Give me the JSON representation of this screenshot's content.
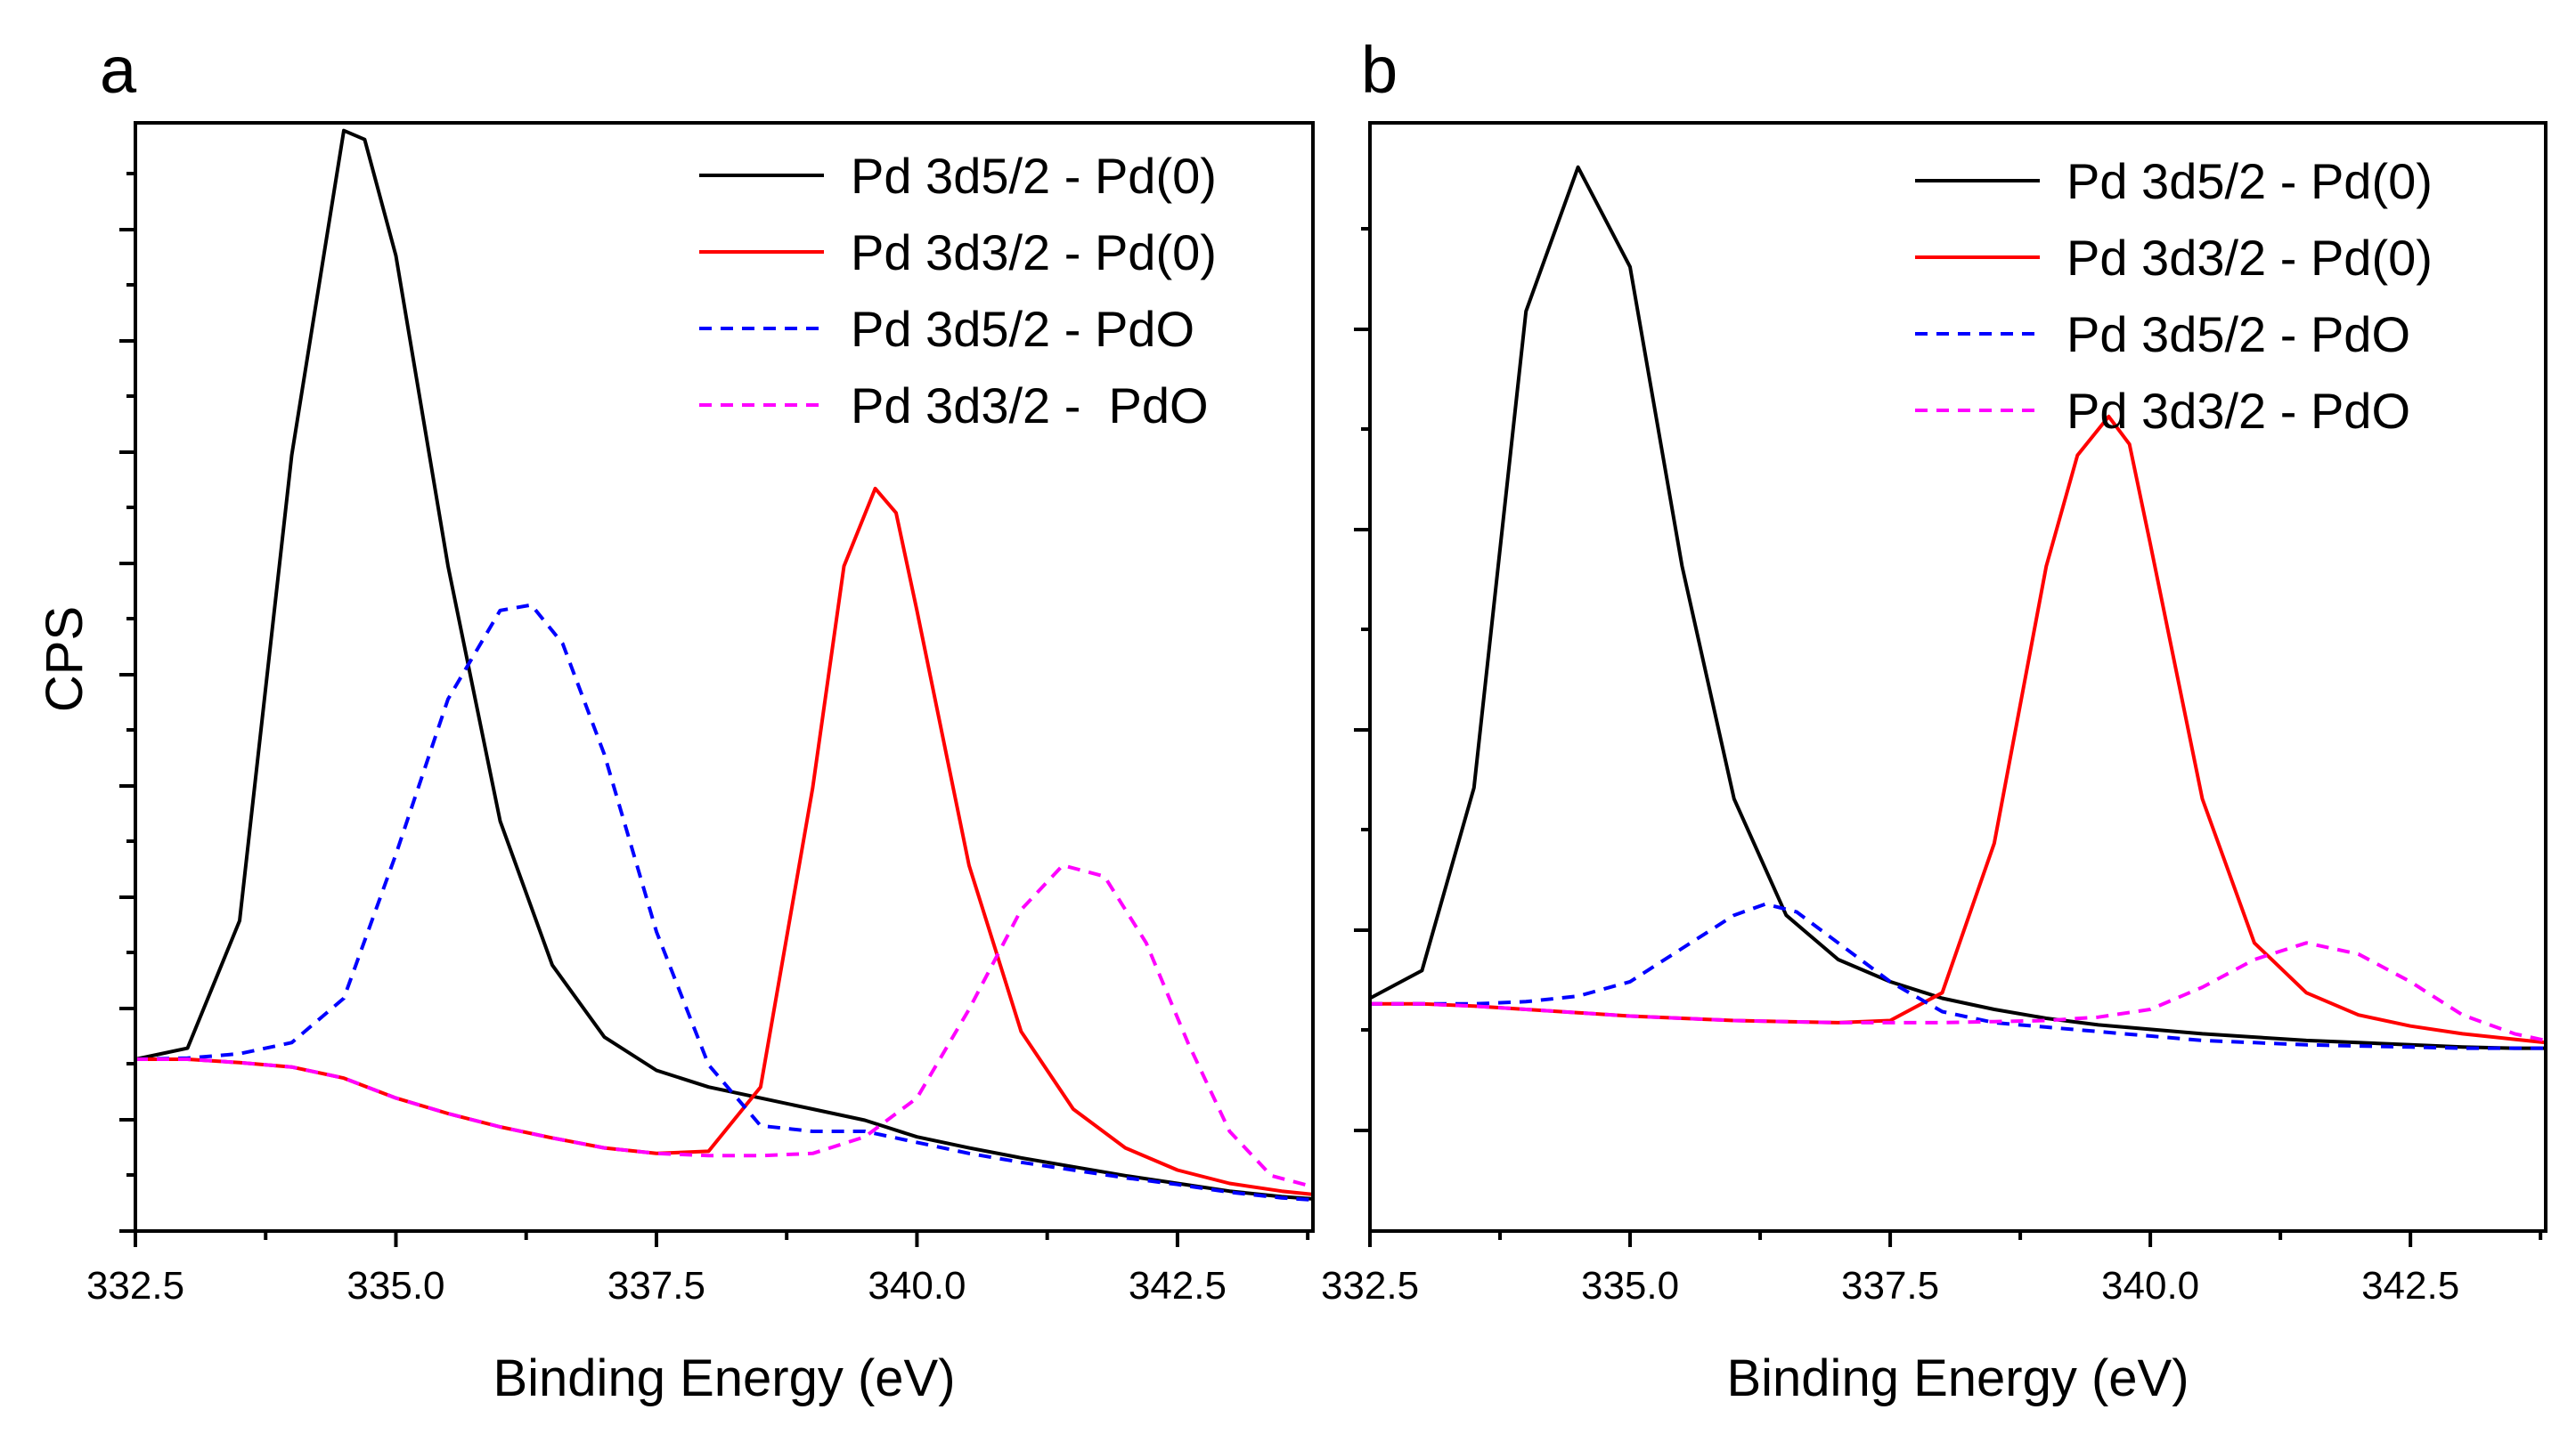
{
  "chart_data": [
    {
      "panel": "a",
      "type": "line",
      "title": "",
      "xlabel": "Binding Energy (eV)",
      "ylabel": "CPS",
      "xlim": [
        332.5,
        343.8
      ],
      "ylim": [
        0,
        1
      ],
      "xticks": [
        "332.5",
        "335.0",
        "337.5",
        "340.0",
        "342.5"
      ],
      "legend_position": "top-right",
      "series": [
        {
          "name": "Pd 3d5/2 - Pd(0)",
          "color": "#000000",
          "dash": "solid",
          "x": [
            332.5,
            333.0,
            333.5,
            334.0,
            334.5,
            334.7,
            335.0,
            335.5,
            336.0,
            336.5,
            337.0,
            337.5,
            338.0,
            338.5,
            339.0,
            339.5,
            340.0,
            340.5,
            341.0,
            341.5,
            342.0,
            342.5,
            343.0,
            343.5,
            343.8
          ],
          "y": [
            0.155,
            0.165,
            0.28,
            0.7,
            0.993,
            0.985,
            0.88,
            0.6,
            0.37,
            0.24,
            0.175,
            0.145,
            0.13,
            0.12,
            0.11,
            0.1,
            0.085,
            0.075,
            0.066,
            0.058,
            0.05,
            0.043,
            0.036,
            0.031,
            0.029
          ]
        },
        {
          "name": "Pd 3d3/2 - Pd(0)",
          "color": "#ff0000",
          "dash": "solid",
          "x": [
            332.5,
            333.0,
            333.5,
            334.0,
            334.5,
            335.0,
            335.5,
            336.0,
            336.5,
            337.0,
            337.5,
            338.0,
            338.5,
            339.0,
            339.3,
            339.6,
            339.8,
            340.0,
            340.5,
            341.0,
            341.5,
            342.0,
            342.5,
            343.0,
            343.5,
            343.8
          ],
          "y": [
            0.155,
            0.155,
            0.152,
            0.148,
            0.138,
            0.12,
            0.106,
            0.094,
            0.084,
            0.075,
            0.07,
            0.072,
            0.13,
            0.4,
            0.6,
            0.67,
            0.648,
            0.56,
            0.33,
            0.18,
            0.11,
            0.075,
            0.055,
            0.043,
            0.036,
            0.033
          ]
        },
        {
          "name": "Pd 3d5/2 - PdO",
          "color": "#0000ff",
          "dash": "dashed",
          "x": [
            332.5,
            333.0,
            333.5,
            334.0,
            334.5,
            335.0,
            335.5,
            336.0,
            336.3,
            336.6,
            337.0,
            337.5,
            338.0,
            338.5,
            339.0,
            339.5,
            340.0,
            340.5,
            341.0,
            341.5,
            342.0,
            342.5,
            343.0,
            343.5,
            343.8
          ],
          "y": [
            0.155,
            0.156,
            0.16,
            0.17,
            0.21,
            0.34,
            0.48,
            0.56,
            0.565,
            0.53,
            0.43,
            0.27,
            0.15,
            0.095,
            0.09,
            0.09,
            0.08,
            0.07,
            0.062,
            0.055,
            0.048,
            0.042,
            0.035,
            0.03,
            0.028
          ]
        },
        {
          "name": "Pd 3d3/2 -  PdO",
          "color": "#ff00ff",
          "dash": "dashed",
          "x": [
            332.5,
            333.0,
            333.5,
            334.0,
            334.5,
            335.0,
            335.5,
            336.0,
            336.5,
            337.0,
            337.5,
            338.0,
            338.5,
            339.0,
            339.5,
            340.0,
            340.5,
            341.0,
            341.4,
            341.8,
            342.2,
            342.6,
            343.0,
            343.4,
            343.8
          ],
          "y": [
            0.155,
            0.155,
            0.152,
            0.148,
            0.138,
            0.12,
            0.106,
            0.094,
            0.084,
            0.075,
            0.07,
            0.068,
            0.068,
            0.07,
            0.085,
            0.12,
            0.2,
            0.29,
            0.33,
            0.32,
            0.26,
            0.17,
            0.09,
            0.05,
            0.04
          ]
        }
      ]
    },
    {
      "panel": "b",
      "type": "line",
      "title": "",
      "xlabel": "Binding Energy (eV)",
      "ylabel": "",
      "xlim": [
        332.5,
        343.8
      ],
      "ylim": [
        0,
        1
      ],
      "xticks": [
        "332.5",
        "335.0",
        "337.5",
        "340.0",
        "342.5"
      ],
      "legend_position": "top-right",
      "series": [
        {
          "name": "Pd 3d5/2 - Pd(0)",
          "color": "#000000",
          "dash": "solid",
          "x": [
            332.5,
            333.0,
            333.5,
            334.0,
            334.5,
            335.0,
            335.5,
            336.0,
            336.5,
            337.0,
            337.5,
            338.0,
            338.5,
            339.0,
            339.5,
            340.0,
            340.5,
            341.0,
            341.5,
            342.0,
            342.5,
            343.0,
            343.5,
            343.8
          ],
          "y": [
            0.21,
            0.235,
            0.4,
            0.83,
            0.96,
            0.87,
            0.6,
            0.39,
            0.285,
            0.245,
            0.225,
            0.21,
            0.2,
            0.192,
            0.186,
            0.182,
            0.178,
            0.175,
            0.172,
            0.17,
            0.168,
            0.166,
            0.165,
            0.165
          ]
        },
        {
          "name": "Pd 3d3/2 - Pd(0)",
          "color": "#ff0000",
          "dash": "solid",
          "x": [
            332.5,
            333.0,
            333.5,
            334.0,
            334.5,
            335.0,
            335.5,
            336.0,
            336.5,
            337.0,
            337.5,
            338.0,
            338.5,
            339.0,
            339.3,
            339.6,
            339.8,
            340.0,
            340.5,
            341.0,
            341.5,
            342.0,
            342.5,
            343.0,
            343.5,
            343.8
          ],
          "y": [
            0.205,
            0.205,
            0.203,
            0.2,
            0.197,
            0.194,
            0.192,
            0.19,
            0.189,
            0.188,
            0.19,
            0.215,
            0.35,
            0.6,
            0.7,
            0.735,
            0.71,
            0.62,
            0.39,
            0.26,
            0.215,
            0.195,
            0.185,
            0.178,
            0.173,
            0.17
          ]
        },
        {
          "name": "Pd 3d5/2 - PdO",
          "color": "#0000ff",
          "dash": "dashed",
          "x": [
            332.5,
            333.0,
            333.5,
            334.0,
            334.5,
            335.0,
            335.5,
            336.0,
            336.3,
            336.6,
            337.0,
            337.5,
            338.0,
            338.5,
            339.0,
            339.5,
            340.0,
            340.5,
            341.0,
            341.5,
            342.0,
            342.5,
            343.0,
            343.5,
            343.8
          ],
          "y": [
            0.205,
            0.205,
            0.205,
            0.207,
            0.212,
            0.225,
            0.255,
            0.285,
            0.295,
            0.288,
            0.26,
            0.225,
            0.198,
            0.188,
            0.184,
            0.18,
            0.176,
            0.172,
            0.17,
            0.168,
            0.167,
            0.166,
            0.165,
            0.165,
            0.165
          ]
        },
        {
          "name": "Pd 3d3/2 - PdO",
          "color": "#ff00ff",
          "dash": "dashed",
          "x": [
            332.5,
            333.0,
            333.5,
            334.0,
            334.5,
            335.0,
            335.5,
            336.0,
            336.5,
            337.0,
            337.5,
            338.0,
            338.5,
            339.0,
            339.5,
            340.0,
            340.5,
            341.0,
            341.5,
            342.0,
            342.5,
            343.0,
            343.5,
            343.8
          ],
          "y": [
            0.205,
            0.205,
            0.203,
            0.2,
            0.197,
            0.194,
            0.192,
            0.19,
            0.189,
            0.188,
            0.188,
            0.188,
            0.189,
            0.19,
            0.193,
            0.2,
            0.22,
            0.245,
            0.26,
            0.25,
            0.225,
            0.195,
            0.178,
            0.172
          ]
        }
      ]
    }
  ]
}
